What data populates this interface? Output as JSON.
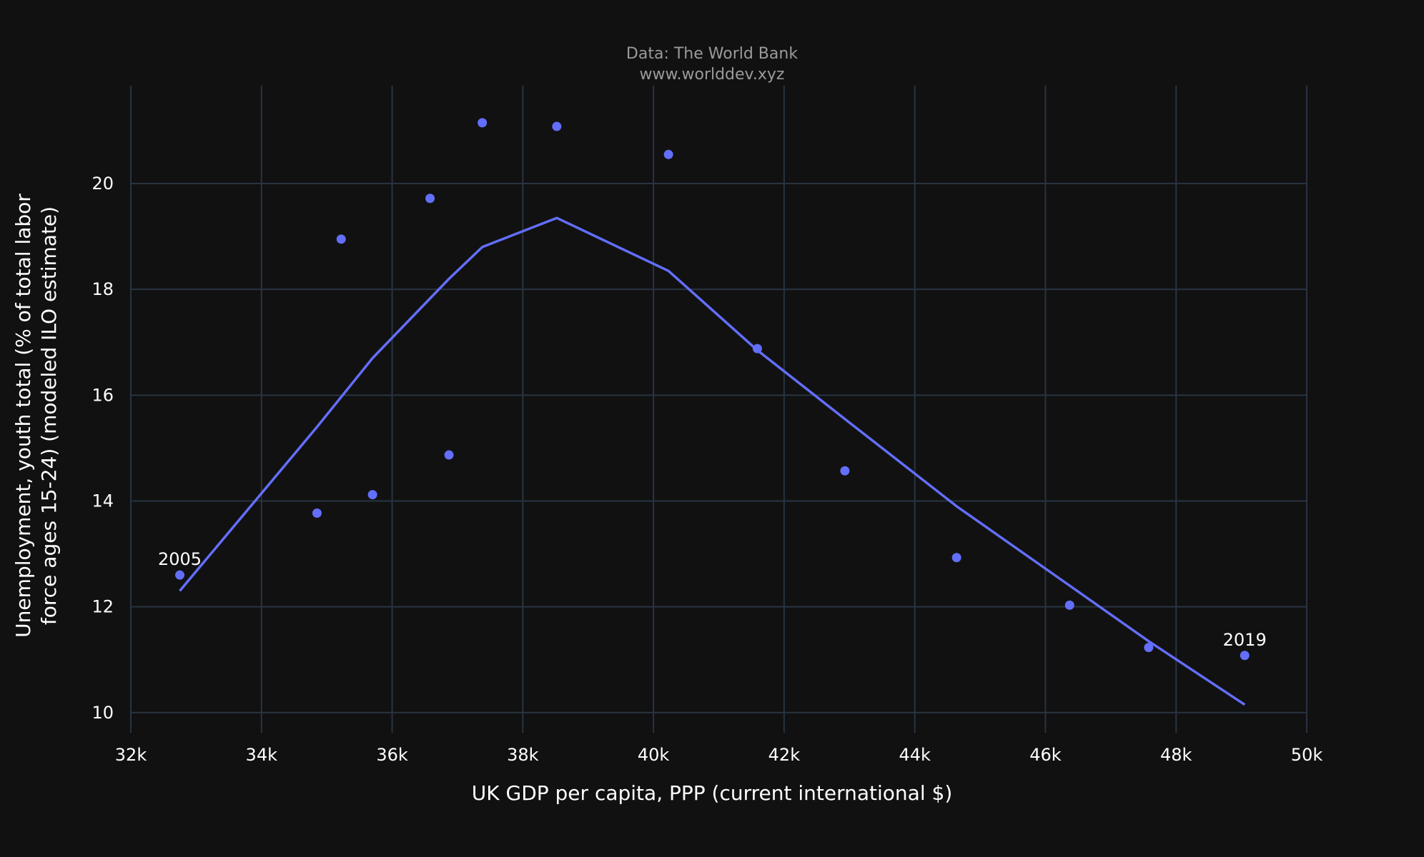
{
  "chart_data": {
    "type": "scatter",
    "title_lines": [
      "Data: The World Bank",
      "www.worlddev.xyz"
    ],
    "xlabel": "UK  GDP per capita, PPP (current international $)",
    "ylabel_lines": [
      "Unemployment, youth total (% of total labor",
      "force ages 15-24) (modeled ILO estimate)"
    ],
    "xlim": [
      32000,
      50000
    ],
    "ylim": [
      9.7,
      21.85
    ],
    "x_ticks": [
      32000,
      34000,
      36000,
      38000,
      40000,
      42000,
      44000,
      46000,
      48000,
      50000
    ],
    "x_tick_labels": [
      "32k",
      "34k",
      "36k",
      "38k",
      "40k",
      "42k",
      "44k",
      "46k",
      "48k",
      "50k"
    ],
    "y_ticks": [
      10,
      12,
      14,
      16,
      18,
      20
    ],
    "y_tick_labels": [
      "10",
      "12",
      "14",
      "16",
      "18",
      "20"
    ],
    "grid": true,
    "colors": {
      "background": "#111111",
      "grid": "#283442",
      "series": "#636efa",
      "text": "#ffffff"
    },
    "points": [
      {
        "x": 32750,
        "y": 12.6,
        "label": "2005"
      },
      {
        "x": 34850,
        "y": 13.77,
        "label": ""
      },
      {
        "x": 35220,
        "y": 18.95,
        "label": ""
      },
      {
        "x": 35700,
        "y": 14.12,
        "label": ""
      },
      {
        "x": 36580,
        "y": 19.72,
        "label": ""
      },
      {
        "x": 36870,
        "y": 14.87,
        "label": ""
      },
      {
        "x": 37380,
        "y": 21.15,
        "label": ""
      },
      {
        "x": 38520,
        "y": 21.08,
        "label": ""
      },
      {
        "x": 40230,
        "y": 20.55,
        "label": ""
      },
      {
        "x": 41590,
        "y": 16.88,
        "label": ""
      },
      {
        "x": 42930,
        "y": 14.57,
        "label": ""
      },
      {
        "x": 44640,
        "y": 12.93,
        "label": ""
      },
      {
        "x": 46370,
        "y": 12.03,
        "label": ""
      },
      {
        "x": 47580,
        "y": 11.23,
        "label": ""
      },
      {
        "x": 49050,
        "y": 11.08,
        "label": "2019"
      }
    ],
    "trend_line": {
      "x": [
        32750,
        34850,
        35700,
        36870,
        37380,
        38520,
        40230,
        41590,
        42930,
        44640,
        46370,
        47580,
        49050
      ],
      "y": [
        12.3,
        15.4,
        16.7,
        18.2,
        18.8,
        19.35,
        18.35,
        16.85,
        15.55,
        13.9,
        12.4,
        11.35,
        10.15
      ]
    }
  }
}
